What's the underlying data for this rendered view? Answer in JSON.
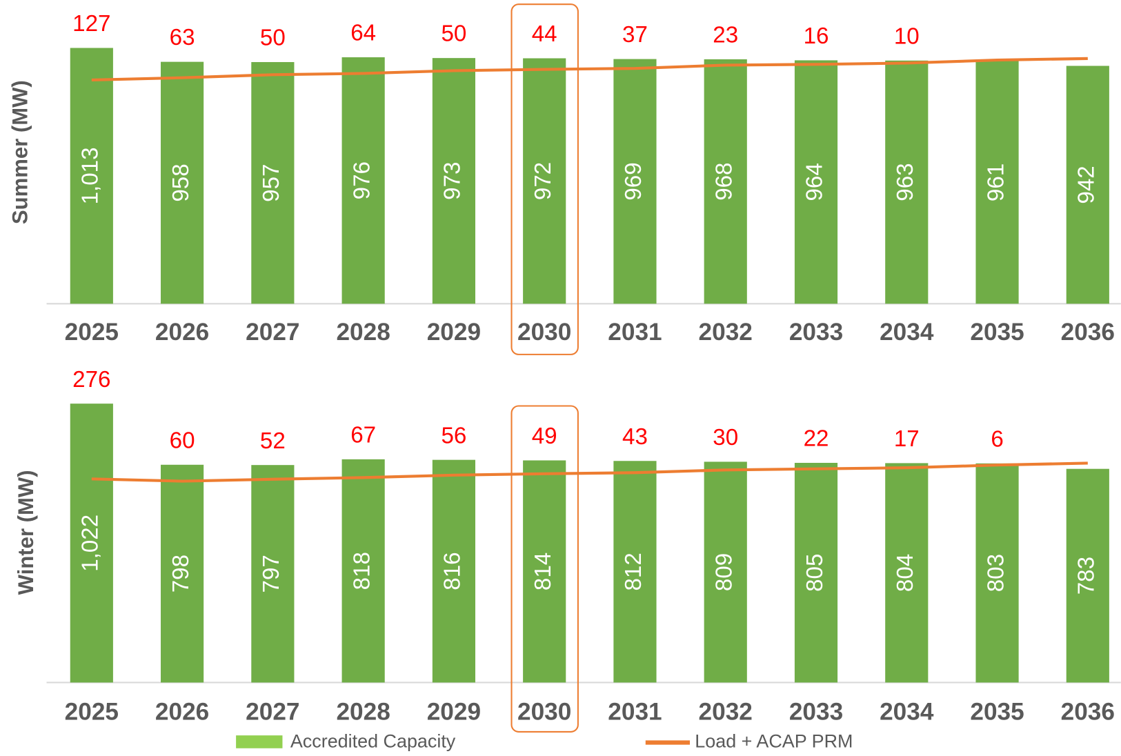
{
  "chart_data": [
    {
      "type": "bar_line",
      "y_label": "Summer (MW)",
      "categories": [
        "2025",
        "2026",
        "2027",
        "2028",
        "2029",
        "2030",
        "2031",
        "2032",
        "2033",
        "2034",
        "2035",
        "2036"
      ],
      "series": [
        {
          "name": "Accredited Capacity",
          "color": "#70ad47",
          "legend_color": "#92d050",
          "values": [
            1013,
            958,
            957,
            976,
            973,
            972,
            969,
            968,
            964,
            963,
            961,
            942
          ],
          "value_labels": [
            "1,013",
            "958",
            "957",
            "976",
            "973",
            "972",
            "969",
            "968",
            "964",
            "963",
            "961",
            "942"
          ]
        },
        {
          "name": "Load + ACAP PRM",
          "color": "#ed7d31",
          "type": "line",
          "values": [
            886,
            895,
            907,
            912,
            923,
            928,
            932,
            945,
            948,
            953,
            965,
            971
          ]
        }
      ],
      "annotations": [
        127,
        63,
        50,
        64,
        50,
        44,
        37,
        23,
        16,
        10,
        null,
        null
      ],
      "highlight_index": 5,
      "ylim": [
        0,
        1200
      ]
    },
    {
      "type": "bar_line",
      "y_label": "Winter (MW)",
      "categories": [
        "2025",
        "2026",
        "2027",
        "2028",
        "2029",
        "2030",
        "2031",
        "2032",
        "2033",
        "2034",
        "2035",
        "2036"
      ],
      "series": [
        {
          "color": "#70ad47",
          "values": [
            1022,
            798,
            797,
            818,
            816,
            814,
            812,
            809,
            805,
            804,
            803,
            783
          ],
          "value_labels": [
            "1,022",
            "798",
            "797",
            "818",
            "816",
            "814",
            "812",
            "809",
            "805",
            "804",
            "803",
            "783"
          ]
        },
        {
          "color": "#ed7d31",
          "type": "line",
          "values": [
            746,
            738,
            745,
            751,
            760,
            765,
            769,
            779,
            783,
            787,
            797,
            804
          ]
        }
      ],
      "annotations": [
        276,
        60,
        52,
        67,
        56,
        49,
        43,
        30,
        22,
        17,
        6,
        null
      ],
      "highlight_index": 5,
      "ylim": [
        0,
        1100
      ]
    }
  ]
}
